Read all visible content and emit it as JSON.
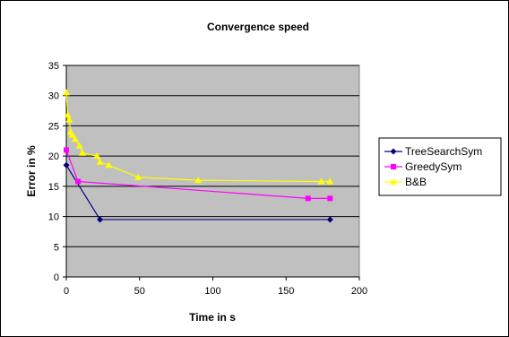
{
  "chart_data": {
    "type": "line",
    "title": "Convergence speed",
    "xlabel": "Time in s",
    "ylabel": "Error in %",
    "xlim": [
      0,
      200
    ],
    "ylim": [
      0,
      35
    ],
    "x_ticks": [
      "0",
      "50",
      "100",
      "150",
      "200"
    ],
    "y_ticks": [
      "0",
      "5",
      "10",
      "15",
      "20",
      "25",
      "30",
      "35"
    ],
    "grid": true,
    "plot_background": "#c0c0c0",
    "legend_position": "right",
    "series": [
      {
        "name": "TreeSearchSym",
        "color": "#000080",
        "marker": "diamond",
        "x": [
          0,
          23,
          180
        ],
        "y": [
          18.5,
          9.5,
          9.5
        ]
      },
      {
        "name": "GreedySym",
        "color": "#ff00ff",
        "marker": "square",
        "x": [
          0,
          8,
          165,
          180
        ],
        "y": [
          21,
          15.8,
          13,
          13
        ]
      },
      {
        "name": "B&B",
        "color": "#ffff00",
        "marker": "triangle",
        "x": [
          0,
          1,
          2,
          3,
          4,
          6,
          9,
          11,
          21,
          23,
          29,
          49,
          90,
          174,
          180
        ],
        "y": [
          30.5,
          26.8,
          26,
          24,
          23.5,
          22.8,
          21.7,
          20.5,
          20,
          19,
          18.5,
          16.5,
          16,
          15.8,
          15.8
        ]
      }
    ]
  }
}
